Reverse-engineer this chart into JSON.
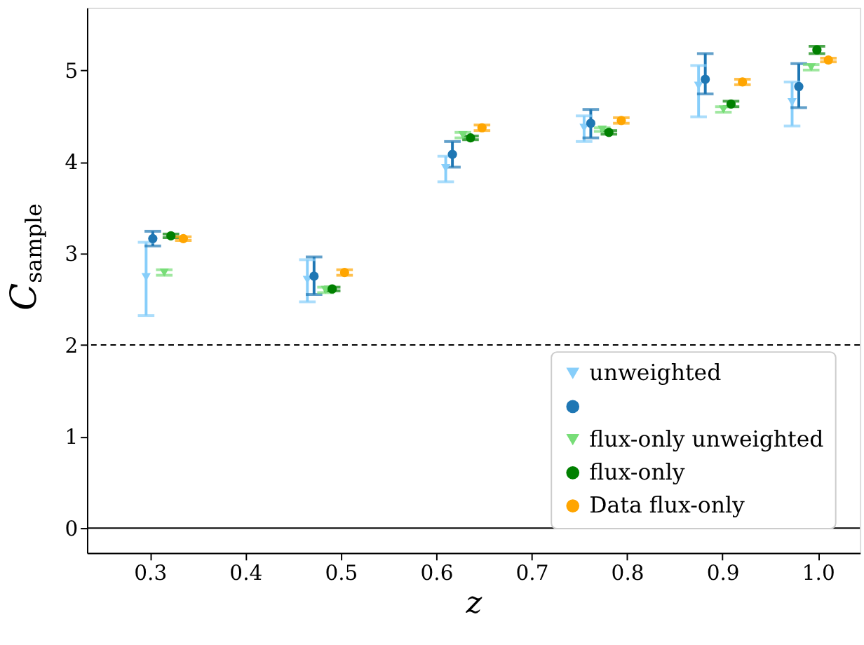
{
  "chart_data": {
    "type": "scatter",
    "xlabel": "z",
    "ylabel": "C$_{sample}$",
    "xlim": [
      0.234,
      1.044
    ],
    "xticks": [
      0.3,
      0.4,
      0.5,
      0.6,
      0.7,
      0.8,
      0.9,
      {
        "value": 1.0,
        "label": "1.0"
      }
    ],
    "ylim": [
      -0.27,
      5.68
    ],
    "yticks": [
      0,
      1,
      2,
      3,
      4,
      5
    ],
    "grid": false,
    "legend": "bottom right",
    "ref_lines": [
      {
        "axis": "y",
        "value": 2,
        "line_style": "dashed",
        "color": "#000000"
      },
      {
        "axis": "y",
        "value": 0,
        "line_style": "solid",
        "color": "#000000"
      }
    ],
    "series": [
      {
        "name": "unweighted",
        "color": "#87cefa",
        "marker": "triangle",
        "x": [
          0.296,
          0.465,
          0.61,
          0.755,
          0.875,
          0.973
        ],
        "values": [
          2.74,
          2.71,
          3.93,
          4.37,
          4.83,
          4.65
        ],
        "errors": [
          [
            2.32,
            3.12
          ],
          [
            2.47,
            2.93
          ],
          [
            3.78,
            4.06
          ],
          [
            4.22,
            4.5
          ],
          [
            4.49,
            5.05
          ],
          [
            4.39,
            4.87
          ]
        ]
      },
      {
        "color": "#1f77b4",
        "marker": "circle",
        "x": [
          0.303,
          0.472,
          0.617,
          0.762,
          0.882,
          0.98
        ],
        "values": [
          3.16,
          2.75,
          4.08,
          4.42,
          4.9,
          4.82
        ],
        "errors": [
          [
            3.08,
            3.24
          ],
          [
            2.55,
            2.96
          ],
          [
            3.94,
            4.22
          ],
          [
            4.26,
            4.57
          ],
          [
            4.74,
            5.18
          ],
          [
            4.59,
            5.07
          ]
        ]
      },
      {
        "name": "flux-only unweighted",
        "color": "#77dd77",
        "marker": "triangle",
        "x": [
          0.315,
          0.484,
          0.628,
          0.774,
          0.901,
          0.993
        ],
        "values": [
          2.79,
          2.6,
          4.29,
          4.35,
          4.57,
          5.03
        ],
        "errors": [
          0.03,
          0.03,
          0.03,
          0.02,
          0.03,
          0.03
        ]
      },
      {
        "name": "flux-only",
        "color": "#008000",
        "marker": "circle",
        "x": [
          0.322,
          0.491,
          0.636,
          0.781,
          0.909,
          0.999
        ],
        "values": [
          3.19,
          2.61,
          4.26,
          4.32,
          4.63,
          5.22
        ],
        "errors": [
          0.02,
          0.02,
          0.02,
          0.02,
          0.03,
          0.04
        ]
      },
      {
        "name": "Data flux-only",
        "color": "#ffa500",
        "marker": "circle",
        "x": [
          0.335,
          0.504,
          0.648,
          0.794,
          0.921,
          1.011
        ],
        "values": [
          3.16,
          2.79,
          4.37,
          4.45,
          4.87,
          5.11
        ],
        "errors": [
          0.02,
          0.03,
          0.03,
          0.03,
          0.03,
          0.02
        ]
      }
    ]
  }
}
